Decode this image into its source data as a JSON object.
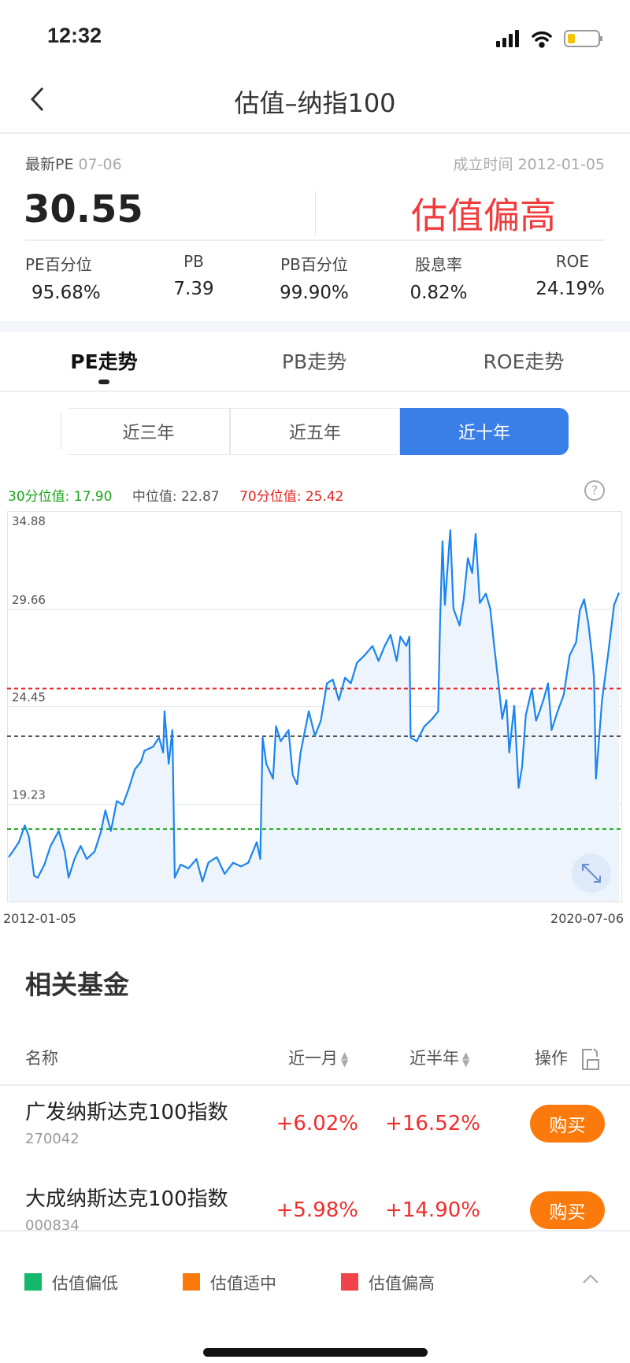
{
  "status_bar": {
    "time": "12:32",
    "battery_level": 0.2
  },
  "nav": {
    "title": "估值–纳指100",
    "back_icon": "chevron-left-icon"
  },
  "summary": {
    "latest_pe_label": "最新PE",
    "latest_pe_date": "07-06",
    "inception_label": "成立时间",
    "inception_date": "2012-01-05",
    "pe_value": "30.55",
    "valuation_status": "估值偏高",
    "metrics": [
      {
        "label": "PE百分位",
        "value": "95.68%"
      },
      {
        "label": "PB",
        "value": "7.39"
      },
      {
        "label": "PB百分位",
        "value": "99.90%"
      },
      {
        "label": "股息率",
        "value": "0.82%"
      },
      {
        "label": "ROE",
        "value": "24.19%"
      }
    ]
  },
  "tabs": [
    {
      "label": "PE走势",
      "active": true
    },
    {
      "label": "PB走势"
    },
    {
      "label": "ROE走势"
    }
  ],
  "ranges": [
    {
      "label": "近三年"
    },
    {
      "label": "近五年"
    },
    {
      "label": "近十年",
      "active": true
    }
  ],
  "chart_legend": {
    "p30_label": "30分位值:",
    "p30_value": "17.90",
    "median_label": "中位值:",
    "median_value": "22.87",
    "p70_label": "70分位值:",
    "p70_value": "25.42"
  },
  "colors": {
    "line": "#1a84f0",
    "p30": "#1aa61a",
    "median": "#555555",
    "p70": "#e8231f",
    "accent": "#3a7fe8",
    "buy": "#fb7a0b",
    "low": "#13b86a",
    "mid": "#fb7a0b",
    "high": "#f2434a"
  },
  "chart_data": {
    "type": "area",
    "xlabel": "",
    "ylabel": "",
    "ylim": [
      14.02,
      34.88
    ],
    "yticks": [
      "34.88",
      "29.66",
      "24.45",
      "19.23",
      "14.02"
    ],
    "xticks": [
      "2012-01-05",
      "2020-07-06"
    ],
    "reference_lines": [
      {
        "value": 17.9,
        "style": "dashed",
        "color": "#1aa61a"
      },
      {
        "value": 22.87,
        "style": "dashed",
        "color": "#555555"
      },
      {
        "value": 25.42,
        "style": "dashed",
        "color": "#e8231f"
      }
    ],
    "grid": true,
    "series": [
      {
        "values": [
          [
            "2012-01-05",
            16.4
          ],
          [
            "2012-01-26",
            16.7
          ],
          [
            "2012-02-26",
            17.2
          ],
          [
            "2012-03-27",
            18.1
          ],
          [
            "2012-04-17",
            17.5
          ],
          [
            "2012-05-14",
            15.4
          ],
          [
            "2012-06-01",
            15.3
          ],
          [
            "2012-07-05",
            16.0
          ],
          [
            "2012-08-05",
            17.0
          ],
          [
            "2012-09-16",
            17.8
          ],
          [
            "2012-10-16",
            16.7
          ],
          [
            "2012-11-05",
            15.3
          ],
          [
            "2012-12-05",
            16.3
          ],
          [
            "2013-01-05",
            17.0
          ],
          [
            "2013-02-05",
            16.3
          ],
          [
            "2013-03-17",
            16.7
          ],
          [
            "2013-04-17",
            17.7
          ],
          [
            "2013-05-11",
            18.9
          ],
          [
            "2013-06-08",
            17.8
          ],
          [
            "2013-07-08",
            19.4
          ],
          [
            "2013-08-08",
            19.2
          ],
          [
            "2013-09-08",
            20.1
          ],
          [
            "2013-10-08",
            21.1
          ],
          [
            "2013-11-08",
            21.5
          ],
          [
            "2013-11-26",
            22.1
          ],
          [
            "2014-01-08",
            22.3
          ],
          [
            "2014-02-08",
            22.8
          ],
          [
            "2014-03-01",
            22.0
          ],
          [
            "2014-03-08",
            24.2
          ],
          [
            "2014-03-29",
            21.4
          ],
          [
            "2014-04-17",
            23.2
          ],
          [
            "2014-04-29",
            15.3
          ],
          [
            "2014-05-29",
            16.0
          ],
          [
            "2014-07-08",
            15.8
          ],
          [
            "2014-08-17",
            16.3
          ],
          [
            "2014-09-17",
            15.1
          ],
          [
            "2014-10-17",
            16.1
          ],
          [
            "2014-11-29",
            16.4
          ],
          [
            "2015-01-08",
            15.5
          ],
          [
            "2015-02-20",
            16.1
          ],
          [
            "2015-04-01",
            15.9
          ],
          [
            "2015-05-08",
            16.1
          ],
          [
            "2015-06-20",
            17.2
          ],
          [
            "2015-07-08",
            16.3
          ],
          [
            "2015-07-20",
            22.8
          ],
          [
            "2015-08-08",
            21.4
          ],
          [
            "2015-09-11",
            20.6
          ],
          [
            "2015-09-26",
            23.4
          ],
          [
            "2015-10-20",
            22.6
          ],
          [
            "2015-11-29",
            23.2
          ],
          [
            "2015-12-20",
            20.8
          ],
          [
            "2016-01-11",
            20.3
          ],
          [
            "2016-01-29",
            22.0
          ],
          [
            "2016-03-11",
            24.2
          ],
          [
            "2016-04-11",
            22.9
          ],
          [
            "2016-05-11",
            23.7
          ],
          [
            "2016-06-11",
            25.7
          ],
          [
            "2016-07-11",
            25.9
          ],
          [
            "2016-08-11",
            24.8
          ],
          [
            "2016-09-11",
            26.0
          ],
          [
            "2016-10-11",
            25.7
          ],
          [
            "2016-11-11",
            26.8
          ],
          [
            "2016-12-20",
            27.2
          ],
          [
            "2017-01-29",
            27.7
          ],
          [
            "2017-03-01",
            26.9
          ],
          [
            "2017-04-01",
            27.7
          ],
          [
            "2017-05-01",
            28.3
          ],
          [
            "2017-06-01",
            26.9
          ],
          [
            "2017-06-20",
            28.2
          ],
          [
            "2017-07-20",
            27.7
          ],
          [
            "2017-08-05",
            28.2
          ],
          [
            "2017-08-11",
            22.8
          ],
          [
            "2017-09-11",
            22.6
          ],
          [
            "2017-10-20",
            23.4
          ],
          [
            "2017-11-29",
            23.8
          ],
          [
            "2017-12-29",
            24.2
          ],
          [
            "2018-01-08",
            29.1
          ],
          [
            "2018-01-20",
            33.3
          ],
          [
            "2018-02-01",
            29.9
          ],
          [
            "2018-03-01",
            33.9
          ],
          [
            "2018-03-17",
            29.7
          ],
          [
            "2018-04-17",
            28.8
          ],
          [
            "2018-05-08",
            30.2
          ],
          [
            "2018-05-29",
            32.4
          ],
          [
            "2018-06-20",
            31.6
          ],
          [
            "2018-07-08",
            33.7
          ],
          [
            "2018-07-29",
            30.0
          ],
          [
            "2018-08-29",
            30.5
          ],
          [
            "2018-09-20",
            29.7
          ],
          [
            "2018-10-11",
            27.6
          ],
          [
            "2018-10-29",
            26.0
          ],
          [
            "2018-11-20",
            23.8
          ],
          [
            "2018-12-11",
            24.8
          ],
          [
            "2018-12-26",
            22.0
          ],
          [
            "2019-01-20",
            24.5
          ],
          [
            "2019-02-11",
            20.1
          ],
          [
            "2019-03-01",
            21.2
          ],
          [
            "2019-03-20",
            24.0
          ],
          [
            "2019-04-20",
            25.4
          ],
          [
            "2019-05-11",
            23.7
          ],
          [
            "2019-05-29",
            24.2
          ],
          [
            "2019-06-20",
            24.9
          ],
          [
            "2019-07-11",
            25.7
          ],
          [
            "2019-07-29",
            23.2
          ],
          [
            "2019-08-29",
            24.2
          ],
          [
            "2019-09-29",
            25.1
          ],
          [
            "2019-10-29",
            27.2
          ],
          [
            "2019-12-01",
            27.9
          ],
          [
            "2019-12-20",
            29.6
          ],
          [
            "2020-01-11",
            30.2
          ],
          [
            "2020-02-01",
            28.9
          ],
          [
            "2020-02-20",
            27.2
          ],
          [
            "2020-03-01",
            26.0
          ],
          [
            "2020-03-11",
            20.6
          ],
          [
            "2020-03-20",
            21.8
          ],
          [
            "2020-04-11",
            24.8
          ],
          [
            "2020-05-11",
            27.2
          ],
          [
            "2020-06-11",
            29.9
          ],
          [
            "2020-07-06",
            30.55
          ]
        ]
      }
    ]
  },
  "funds": {
    "title": "相关基金",
    "headers": {
      "name": "名称",
      "month": "近一月",
      "half_year": "近半年",
      "action": "操作"
    },
    "rows": [
      {
        "name": "广发纳斯达克100指数",
        "code": "270042",
        "month": "+6.02%",
        "half_year": "+16.52%",
        "button": "购买"
      },
      {
        "name": "大成纳斯达克100指数",
        "code": "000834",
        "month": "+5.98%",
        "half_year": "+14.90%",
        "button": "购买"
      }
    ]
  },
  "legend": [
    {
      "label": "估值偏低"
    },
    {
      "label": "估值适中"
    },
    {
      "label": "估值偏高"
    }
  ]
}
